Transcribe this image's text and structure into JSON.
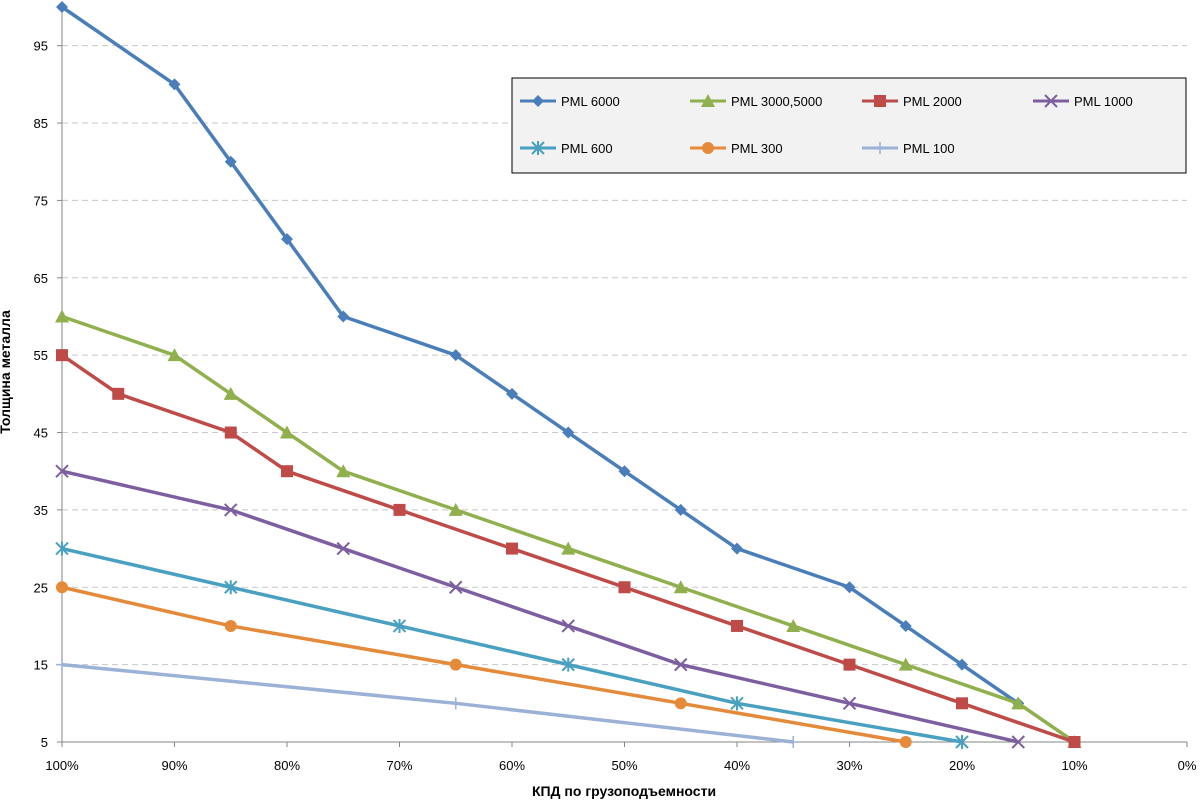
{
  "chart_data": {
    "type": "line",
    "title": "",
    "xlabel": "КПД по грузоподъемности",
    "ylabel": "Толщина металла",
    "x_ticks": [
      "100%",
      "90%",
      "80%",
      "70%",
      "60%",
      "50%",
      "40%",
      "30%",
      "20%",
      "10%",
      "0%"
    ],
    "xlim": [
      100,
      0
    ],
    "y_ticks": [
      "5",
      "15",
      "25",
      "35",
      "45",
      "55",
      "65",
      "75",
      "85",
      "95"
    ],
    "ylim": [
      5,
      100
    ],
    "grid": "horizontal dashed",
    "legend_position": "top-right",
    "series": [
      {
        "name": "PML 6000",
        "color": "#4a7ebb",
        "marker": "diamond",
        "x": [
          100,
          90,
          85,
          80,
          75,
          65,
          60,
          55,
          50,
          45,
          40,
          30,
          25,
          20,
          15
        ],
        "y": [
          100,
          90,
          80,
          70,
          60,
          55,
          50,
          45,
          40,
          35,
          30,
          25,
          20,
          15,
          10
        ]
      },
      {
        "name": "PML 3000,5000",
        "color": "#8fb04d",
        "marker": "triangle",
        "x": [
          100,
          90,
          85,
          80,
          75,
          65,
          55,
          45,
          35,
          25,
          15,
          10
        ],
        "y": [
          60,
          55,
          50,
          45,
          40,
          35,
          30,
          25,
          20,
          15,
          10,
          5
        ]
      },
      {
        "name": "PML 2000",
        "color": "#be4b48",
        "marker": "square",
        "x": [
          100,
          95,
          85,
          80,
          70,
          60,
          50,
          40,
          30,
          20,
          10
        ],
        "y": [
          55,
          50,
          45,
          40,
          35,
          30,
          25,
          20,
          15,
          10,
          5
        ]
      },
      {
        "name": "PML 1000",
        "color": "#7d5fa0",
        "marker": "x",
        "x": [
          100,
          85,
          75,
          65,
          55,
          45,
          30,
          15
        ],
        "y": [
          40,
          35,
          30,
          25,
          20,
          15,
          10,
          5
        ]
      },
      {
        "name": "PML 600",
        "color": "#4aa0c0",
        "marker": "star",
        "x": [
          100,
          85,
          70,
          55,
          40,
          20
        ],
        "y": [
          30,
          25,
          20,
          15,
          10,
          5
        ]
      },
      {
        "name": "PML 300",
        "color": "#e58a3a",
        "marker": "circle",
        "x": [
          100,
          85,
          65,
          45,
          25
        ],
        "y": [
          25,
          20,
          15,
          10,
          5
        ]
      },
      {
        "name": "PML 100",
        "color": "#9bb1d6",
        "marker": "plus",
        "x": [
          100,
          65,
          35
        ],
        "y": [
          15,
          10,
          5
        ]
      }
    ]
  }
}
